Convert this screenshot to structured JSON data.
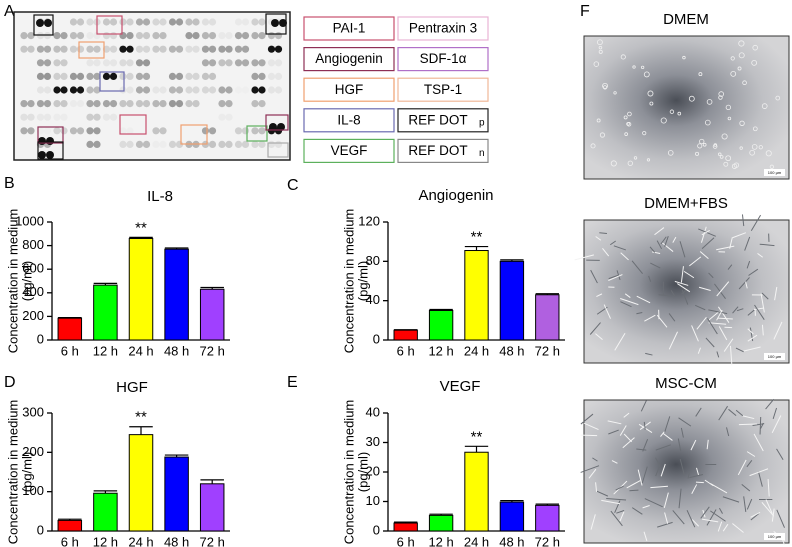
{
  "panels": [
    "A",
    "B",
    "C",
    "D",
    "E",
    "F"
  ],
  "array_legend": [
    {
      "label": "PAI-1",
      "color": "#c8506e"
    },
    {
      "label": "Pentraxin 3",
      "color": "#e8b4d4"
    },
    {
      "label": "Angiogenin",
      "color": "#8e2f55"
    },
    {
      "label": "SDF-1α",
      "color": "#b070c8"
    },
    {
      "label": "HGF",
      "color": "#f0a070"
    },
    {
      "label": "TSP-1",
      "color": "#f0b898"
    },
    {
      "label": "IL-8",
      "color": "#6a6ab0"
    },
    {
      "label": "REF DOT",
      "subscript": "p",
      "color": "#222222"
    },
    {
      "label": "VEGF",
      "color": "#5cb05c"
    },
    {
      "label": "REF DOT",
      "subscript": "n",
      "color": "#888888"
    }
  ],
  "images": [
    {
      "label": "DMEM",
      "scale": "100 µm"
    },
    {
      "label": "DMEM+FBS",
      "scale": "100 µm"
    },
    {
      "label": "MSC-CM",
      "scale": "100 µm"
    }
  ],
  "chart_data": [
    {
      "type": "bar",
      "title": "IL-8",
      "ylabel": [
        "Concentration in medium",
        "(pg/ml)"
      ],
      "categories": [
        "6 h",
        "12 h",
        "24 h",
        "48 h",
        "72 h"
      ],
      "values": [
        185,
        465,
        860,
        770,
        430
      ],
      "errors": [
        5,
        15,
        10,
        10,
        15
      ],
      "colors": [
        "#ff0000",
        "#00ff00",
        "#ffff00",
        "#0000ff",
        "#a040ff"
      ],
      "ylim": [
        0,
        1000
      ],
      "yticks": [
        0,
        200,
        400,
        600,
        800,
        1000
      ],
      "annotations": [
        {
          "text": "**",
          "category": "24 h"
        }
      ]
    },
    {
      "type": "bar",
      "title": "Angiogenin",
      "ylabel": [
        "Concentration in medium",
        "(pg/ml)"
      ],
      "categories": [
        "6 h",
        "12 h",
        "24 h",
        "48 h",
        "72 h"
      ],
      "values": [
        10,
        30,
        91,
        80,
        46
      ],
      "errors": [
        0.5,
        1,
        4,
        1.5,
        1
      ],
      "colors": [
        "#ff0000",
        "#00ff00",
        "#ffff00",
        "#0000ff",
        "#b060e0"
      ],
      "ylim": [
        0,
        120
      ],
      "yticks": [
        0,
        40,
        80,
        120
      ],
      "annotations": [
        {
          "text": "**",
          "category": "24 h"
        }
      ]
    },
    {
      "type": "bar",
      "title": "HGF",
      "ylabel": [
        "Concentration in medium",
        "(pg/ml)"
      ],
      "categories": [
        "6 h",
        "12 h",
        "24 h",
        "48 h",
        "72 h"
      ],
      "values": [
        27,
        96,
        245,
        188,
        120
      ],
      "errors": [
        3,
        6,
        20,
        5,
        10
      ],
      "colors": [
        "#ff0000",
        "#00ff00",
        "#ffff00",
        "#0000ff",
        "#a040ff"
      ],
      "ylim": [
        0,
        300
      ],
      "yticks": [
        0,
        100,
        200,
        300
      ],
      "annotations": [
        {
          "text": "**",
          "category": "24 h"
        }
      ]
    },
    {
      "type": "bar",
      "title": "VEGF",
      "ylabel": [
        "Concentration in medium",
        "(pg/ml)"
      ],
      "categories": [
        "6 h",
        "12 h",
        "24 h",
        "48 h",
        "72 h"
      ],
      "values": [
        2.7,
        5.3,
        26.7,
        9.8,
        8.7
      ],
      "errors": [
        0.3,
        0.4,
        2,
        0.5,
        0.4
      ],
      "colors": [
        "#ff0000",
        "#00ff00",
        "#ffff00",
        "#0000ff",
        "#a040ff"
      ],
      "ylim": [
        0,
        40
      ],
      "yticks": [
        0,
        10,
        20,
        30,
        40
      ],
      "annotations": [
        {
          "text": "**",
          "category": "24 h"
        }
      ]
    }
  ]
}
